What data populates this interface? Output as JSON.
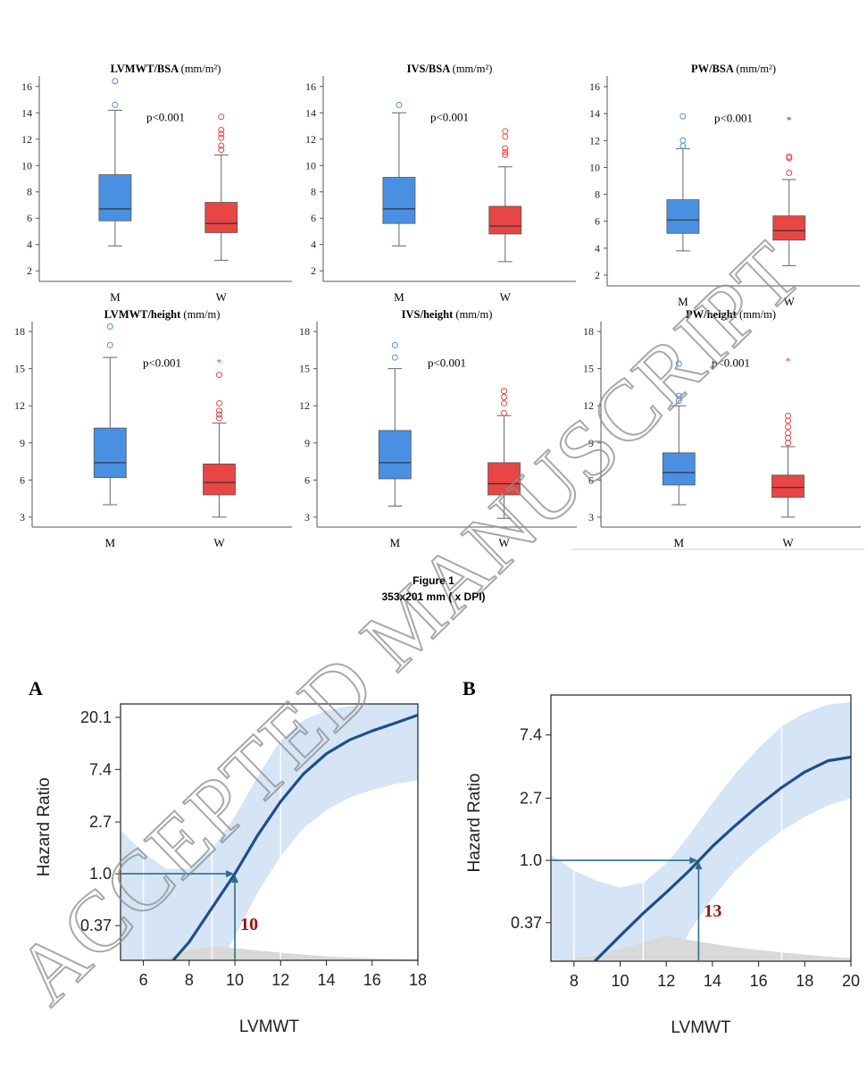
{
  "figure_caption": {
    "title": "Figure 1",
    "subtitle": "353x201 mm ( x  DPI)"
  },
  "watermark": "ACCEPTED MANUSCRIPT",
  "colors": {
    "men": "#4a90e2",
    "women": "#e84545",
    "curve": "#1f4e8c",
    "band": "#cfe0f3",
    "arrow": "#2c6e8f",
    "cutoff_label": "#a01010",
    "density": "#d9d9d9"
  },
  "chart_data": [
    {
      "type": "box",
      "title_bold": "LVMWT/BSA",
      "title_unit": "(mm/m²)",
      "categories": [
        "M",
        "W"
      ],
      "ylim": [
        1.2,
        16.8
      ],
      "yticks": [
        2,
        4,
        6,
        8,
        10,
        12,
        14,
        16
      ],
      "p_value": "p<0.001",
      "boxes": [
        {
          "group": "M",
          "min": 3.9,
          "q1": 5.8,
          "median": 6.7,
          "q3": 9.3,
          "max": 14.2,
          "outliers": [
            14.6,
            16.4
          ],
          "extremes": []
        },
        {
          "group": "W",
          "min": 2.8,
          "q1": 4.9,
          "median": 5.6,
          "q3": 7.2,
          "max": 10.8,
          "outliers": [
            11.2,
            11.5,
            12.1,
            12.4,
            12.7,
            13.7
          ],
          "extremes": []
        }
      ]
    },
    {
      "type": "box",
      "title_bold": "IVS/BSA",
      "title_unit": "(mm/m²)",
      "categories": [
        "M",
        "W"
      ],
      "ylim": [
        1.2,
        16.8
      ],
      "yticks": [
        2,
        4,
        6,
        8,
        10,
        12,
        14,
        16
      ],
      "p_value": "p<0.001",
      "boxes": [
        {
          "group": "M",
          "min": 3.9,
          "q1": 5.6,
          "median": 6.7,
          "q3": 9.1,
          "max": 14.0,
          "outliers": [
            14.6
          ],
          "extremes": []
        },
        {
          "group": "W",
          "min": 2.7,
          "q1": 4.8,
          "median": 5.4,
          "q3": 6.9,
          "max": 9.9,
          "outliers": [
            10.8,
            11.0,
            11.3,
            12.2,
            12.6
          ],
          "extremes": []
        }
      ]
    },
    {
      "type": "box",
      "title_bold": "PW/BSA",
      "title_unit": "(mm/m²)",
      "categories": [
        "M",
        "W"
      ],
      "ylim": [
        1.2,
        16.8
      ],
      "yticks": [
        2,
        4,
        6,
        8,
        10,
        12,
        14,
        16
      ],
      "p_value": "p<0.001",
      "boxes": [
        {
          "group": "M",
          "min": 3.8,
          "q1": 5.1,
          "median": 6.1,
          "q3": 7.6,
          "max": 11.4,
          "outliers": [
            11.6,
            12.0,
            13.8
          ],
          "extremes": []
        },
        {
          "group": "W",
          "min": 2.7,
          "q1": 4.6,
          "median": 5.3,
          "q3": 6.4,
          "max": 9.1,
          "outliers": [
            9.6,
            10.7,
            10.8
          ],
          "extremes": [
            13.6
          ]
        }
      ]
    },
    {
      "type": "box",
      "title_bold": "LVMWT/height",
      "title_unit": "(mm/m)",
      "categories": [
        "M",
        "W"
      ],
      "ylim": [
        2.2,
        18.8
      ],
      "yticks": [
        3,
        6,
        9,
        12,
        15,
        18
      ],
      "p_value": "p<0.001",
      "boxes": [
        {
          "group": "M",
          "min": 4.0,
          "q1": 6.2,
          "median": 7.4,
          "q3": 10.2,
          "max": 15.9,
          "outliers": [
            16.9,
            18.4
          ],
          "extremes": []
        },
        {
          "group": "W",
          "min": 3.0,
          "q1": 4.8,
          "median": 5.8,
          "q3": 7.3,
          "max": 10.6,
          "outliers": [
            11.0,
            11.3,
            11.6,
            12.2,
            14.5
          ],
          "extremes": [
            15.6
          ]
        }
      ]
    },
    {
      "type": "box",
      "title_bold": "IVS/height",
      "title_unit": "(mm/m)",
      "categories": [
        "M",
        "W"
      ],
      "ylim": [
        2.2,
        18.8
      ],
      "yticks": [
        3,
        6,
        9,
        12,
        15,
        18
      ],
      "p_value": "p<0.001",
      "boxes": [
        {
          "group": "M",
          "min": 3.9,
          "q1": 6.1,
          "median": 7.4,
          "q3": 10.0,
          "max": 15.0,
          "outliers": [
            15.9,
            16.9
          ],
          "extremes": []
        },
        {
          "group": "W",
          "min": 2.9,
          "q1": 4.8,
          "median": 5.7,
          "q3": 7.4,
          "max": 11.2,
          "outliers": [
            11.4,
            12.2,
            12.7,
            13.2
          ],
          "extremes": []
        }
      ]
    },
    {
      "type": "box",
      "title_bold": "PW/height",
      "title_unit": "(mm/m)",
      "categories": [
        "M",
        "W"
      ],
      "ylim": [
        2.2,
        18.8
      ],
      "yticks": [
        3,
        6,
        9,
        12,
        15,
        18
      ],
      "p_value": "p<0.001",
      "boxes": [
        {
          "group": "M",
          "min": 4.0,
          "q1": 5.6,
          "median": 6.6,
          "q3": 8.2,
          "max": 12.0,
          "outliers": [
            12.4,
            12.8,
            15.4
          ],
          "extremes": []
        },
        {
          "group": "W",
          "min": 3.0,
          "q1": 4.6,
          "median": 5.4,
          "q3": 6.4,
          "max": 8.7,
          "outliers": [
            9.0,
            9.4,
            9.8,
            10.3,
            10.8,
            11.2
          ],
          "extremes": [
            15.7
          ]
        }
      ]
    },
    {
      "type": "line",
      "panel_label": "A",
      "xlabel": "LVMWT",
      "ylabel": "Hazard Ratio",
      "xlim": [
        5,
        18
      ],
      "xticks": [
        6,
        8,
        10,
        12,
        14,
        16,
        18
      ],
      "y_scale": "log",
      "ylim": [
        0.19,
        26
      ],
      "yticks": [
        0.37,
        1.0,
        2.7,
        7.4,
        20.1
      ],
      "ytick_labels": [
        "0.37",
        "1.0",
        "2.7",
        "7.4",
        "20.1"
      ],
      "cutoff": 10,
      "cutoff_label": "10",
      "vertical_gridlines": [
        6,
        9,
        12
      ],
      "curve": [
        [
          7.3,
          0.19
        ],
        [
          8,
          0.27
        ],
        [
          9,
          0.52
        ],
        [
          10,
          1.0
        ],
        [
          11,
          2.1
        ],
        [
          12,
          4.0
        ],
        [
          13,
          6.8
        ],
        [
          14,
          10.0
        ],
        [
          15,
          13.0
        ],
        [
          16,
          15.5
        ],
        [
          17,
          18.0
        ],
        [
          18,
          21.0
        ]
      ],
      "ci_upper": [
        [
          5,
          2.3
        ],
        [
          6,
          1.5
        ],
        [
          7,
          1.1
        ],
        [
          8,
          1.1
        ],
        [
          9,
          1.6
        ],
        [
          10,
          3.0
        ],
        [
          11,
          6.5
        ],
        [
          12,
          13.0
        ],
        [
          13,
          19.0
        ],
        [
          14,
          23.0
        ],
        [
          15,
          25.0
        ],
        [
          16,
          26.0
        ],
        [
          17,
          26.0
        ],
        [
          18,
          26.0
        ]
      ],
      "ci_lower": [
        [
          5,
          0.19
        ],
        [
          18,
          0.19
        ],
        [
          17,
          0.19
        ],
        [
          15,
          0.19
        ],
        [
          10,
          0.19
        ]
      ],
      "ci_lower_curve": [
        [
          9.4,
          0.19
        ],
        [
          10,
          0.3
        ],
        [
          11,
          0.7
        ],
        [
          12,
          1.4
        ],
        [
          13,
          2.4
        ],
        [
          14,
          3.4
        ],
        [
          15,
          4.3
        ],
        [
          16,
          5.0
        ],
        [
          17,
          5.6
        ],
        [
          18,
          6.0
        ]
      ],
      "density": [
        [
          5,
          0.19
        ],
        [
          7,
          0.2
        ],
        [
          8,
          0.23
        ],
        [
          9,
          0.25
        ],
        [
          10,
          0.24
        ],
        [
          12,
          0.22
        ],
        [
          14,
          0.205
        ],
        [
          16,
          0.197
        ],
        [
          18,
          0.193
        ]
      ]
    },
    {
      "type": "line",
      "panel_label": "B",
      "xlabel": "LVMWT",
      "ylabel": "Hazard Ratio",
      "xlim": [
        7,
        20
      ],
      "xticks": [
        8,
        10,
        12,
        14,
        16,
        18,
        20
      ],
      "y_scale": "log",
      "ylim": [
        0.2,
        14
      ],
      "yticks": [
        0.37,
        1.0,
        2.7,
        7.4
      ],
      "ytick_labels": [
        "0.37",
        "1.0",
        "2.7",
        "7.4"
      ],
      "cutoff": 13.4,
      "cutoff_label": "13",
      "vertical_gridlines": [
        8,
        11,
        17
      ],
      "curve": [
        [
          8.9,
          0.2
        ],
        [
          10,
          0.3
        ],
        [
          11,
          0.43
        ],
        [
          12,
          0.6
        ],
        [
          13,
          0.85
        ],
        [
          14,
          1.25
        ],
        [
          15,
          1.75
        ],
        [
          16,
          2.4
        ],
        [
          17,
          3.2
        ],
        [
          18,
          4.1
        ],
        [
          19,
          4.9
        ],
        [
          20,
          5.2
        ]
      ],
      "ci_upper": [
        [
          7,
          1.1
        ],
        [
          8,
          0.85
        ],
        [
          9,
          0.72
        ],
        [
          10,
          0.65
        ],
        [
          11,
          0.7
        ],
        [
          12,
          0.95
        ],
        [
          13,
          1.5
        ],
        [
          14,
          2.5
        ],
        [
          15,
          4.0
        ],
        [
          16,
          6.0
        ],
        [
          17,
          8.5
        ],
        [
          18,
          10.5
        ],
        [
          19,
          12.0
        ],
        [
          20,
          12.5
        ]
      ],
      "ci_lower_curve": [
        [
          12.4,
          0.2
        ],
        [
          13,
          0.32
        ],
        [
          14,
          0.55
        ],
        [
          15,
          0.85
        ],
        [
          16,
          1.2
        ],
        [
          17,
          1.6
        ],
        [
          18,
          2.0
        ],
        [
          19,
          2.4
        ],
        [
          20,
          2.7
        ]
      ],
      "density": [
        [
          7,
          0.2
        ],
        [
          9,
          0.22
        ],
        [
          11,
          0.27
        ],
        [
          12,
          0.3
        ],
        [
          13,
          0.28
        ],
        [
          15,
          0.25
        ],
        [
          17,
          0.23
        ],
        [
          19,
          0.215
        ],
        [
          20,
          0.21
        ]
      ]
    }
  ]
}
